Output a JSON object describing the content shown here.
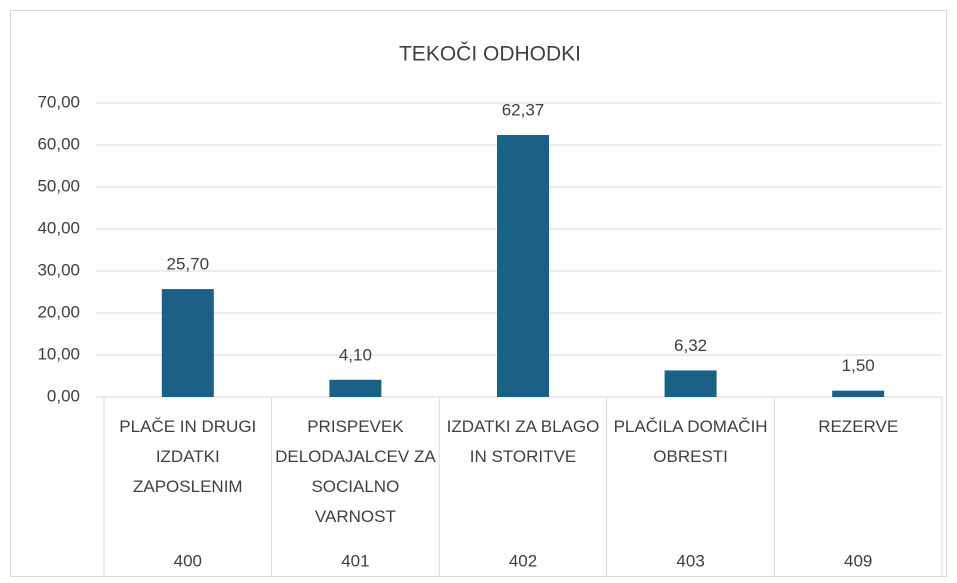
{
  "chart_data": {
    "type": "bar",
    "title": "TEKOČI ODHODKI",
    "categories": [
      "PLAČE IN DRUGI IZDATKI ZAPOSLENIM",
      "PRISPEVEK DELODAJALCEV ZA SOCIALNO VARNOST",
      "IZDATKI ZA BLAGO IN STORITVE",
      "PLAČILA DOMAČIH OBRESTI",
      "REZERVE"
    ],
    "category_groups": [
      "400",
      "401",
      "402",
      "403",
      "409"
    ],
    "values": [
      25.7,
      4.1,
      62.37,
      6.32,
      1.5
    ],
    "value_labels": [
      "25,70",
      "4,10",
      "62,37",
      "6,32",
      "1,50"
    ],
    "color": "#1b6085",
    "ylim": [
      0,
      70
    ],
    "yticks": [
      {
        "value": 0,
        "label": "0,00"
      },
      {
        "value": 10,
        "label": "10,00"
      },
      {
        "value": 20,
        "label": "20,00"
      },
      {
        "value": 30,
        "label": "30,00"
      },
      {
        "value": 40,
        "label": "40,00"
      },
      {
        "value": 50,
        "label": "50,00"
      },
      {
        "value": 60,
        "label": "60,00"
      },
      {
        "value": 70,
        "label": "70,00"
      }
    ],
    "grid": true
  }
}
